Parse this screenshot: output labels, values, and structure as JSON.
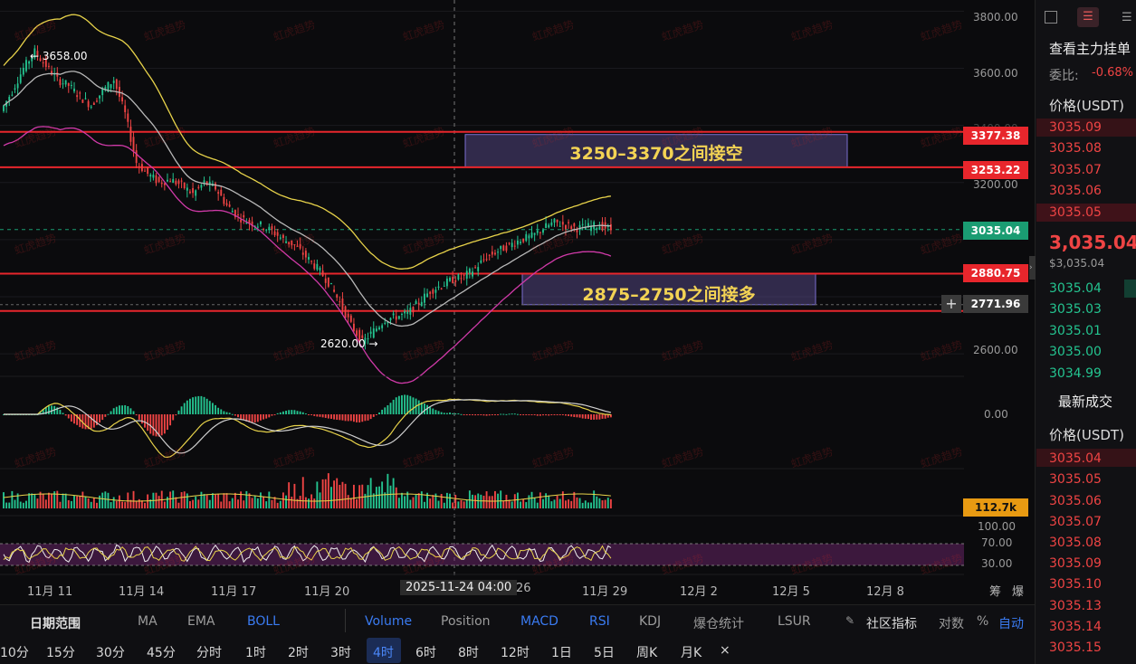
{
  "price_axis": [
    "3800.00",
    "3600.00",
    "3400.00",
    "3200.00",
    "2600.00"
  ],
  "price_tags": [
    {
      "value": "3377.38",
      "color": "#e8262c"
    },
    {
      "value": "3253.22",
      "color": "#e8262c"
    },
    {
      "value": "3035.04",
      "color": "#1a9c72"
    },
    {
      "value": "2880.75",
      "color": "#e8262c"
    },
    {
      "value": "2771.96",
      "color": "#3a3a3a"
    }
  ],
  "macd_zero": "0.00",
  "volume_tag": "112.7k",
  "rsi_axis": [
    "100.00",
    "70.00",
    "30.00"
  ],
  "annotations": {
    "high_marker": "← 3658.00",
    "low_marker": "2620.00 →",
    "short_zone": "3250–3370之间接空",
    "long_zone": "2875–2750之间接多"
  },
  "crosshair_date": "2025-11-24 04:00",
  "date_axis": [
    "11月 11",
    "11月 14",
    "11月 17",
    "11月 20",
    "26",
    "11月 29",
    "12月 2",
    "12月 5",
    "12月 8"
  ],
  "axis_icons": [
    "筹",
    "爆"
  ],
  "watermark": "虹虎趋势",
  "toolbar": {
    "date_range": "日期范围",
    "indicators": [
      "MA",
      "EMA",
      "BOLL",
      "Volume",
      "Position",
      "MACD",
      "RSI",
      "KDJ",
      "爆仓统计",
      "LSUR"
    ],
    "active_indicators": [
      "BOLL",
      "Volume",
      "MACD",
      "RSI"
    ],
    "community": "社区指标",
    "log": "对数",
    "percent": "%",
    "auto": "自动"
  },
  "timeframes": [
    "10分",
    "15分",
    "30分",
    "45分",
    "分时",
    "1时",
    "2时",
    "3时",
    "4时",
    "6时",
    "8时",
    "12时",
    "1日",
    "5日",
    "周K",
    "月K",
    "×"
  ],
  "active_timeframe": "4时",
  "order_book": {
    "title": "查看主力挂单",
    "ratio_label": "委比:",
    "ratio_value": "-0.68%",
    "price_header": "价格(USDT)",
    "asks": [
      "3035.09",
      "3035.08",
      "3035.07",
      "3035.06",
      "3035.05"
    ],
    "last_price": "3,035.04",
    "last_price_sub": "$3,035.04",
    "bids": [
      "3035.04",
      "3035.03",
      "3035.01",
      "3035.00",
      "3034.99"
    ],
    "trades_title": "最新成交",
    "trades_header": "价格(USDT)",
    "trades": [
      "3035.04",
      "3035.05",
      "3035.06",
      "3035.07",
      "3035.08",
      "3035.09",
      "3035.10",
      "3035.13",
      "3035.14",
      "3035.15"
    ]
  },
  "chart_data": {
    "type": "candlestick",
    "timeframe": "4h",
    "price_range": [
      2540,
      3820
    ],
    "series": [
      {
        "name": "high",
        "value": 3658.0
      },
      {
        "name": "low",
        "value": 2620.0
      },
      {
        "name": "last",
        "value": 3035.04
      }
    ],
    "close_path": [
      3450,
      3520,
      3600,
      3658,
      3610,
      3560,
      3540,
      3500,
      3470,
      3520,
      3560,
      3440,
      3270,
      3230,
      3200,
      3210,
      3190,
      3160,
      3200,
      3180,
      3120,
      3080,
      3060,
      3050,
      3030,
      3000,
      2980,
      2940,
      2900,
      2850,
      2780,
      2700,
      2640,
      2680,
      2720,
      2730,
      2740,
      2780,
      2820,
      2840,
      2860,
      2870,
      2900,
      2940,
      2960,
      2980,
      3000,
      3010,
      3040,
      3060,
      3050,
      3040,
      3045,
      3050,
      3035
    ],
    "horizontal_levels": [
      3377.38,
      3253.22,
      2880.75,
      2771.96
    ],
    "zones": [
      {
        "from": 3253.22,
        "to": 3377.38,
        "label": "3250–3370之间接空"
      },
      {
        "from": 2771.96,
        "to": 2880.75,
        "label": "2875–2750之间接多"
      }
    ]
  }
}
